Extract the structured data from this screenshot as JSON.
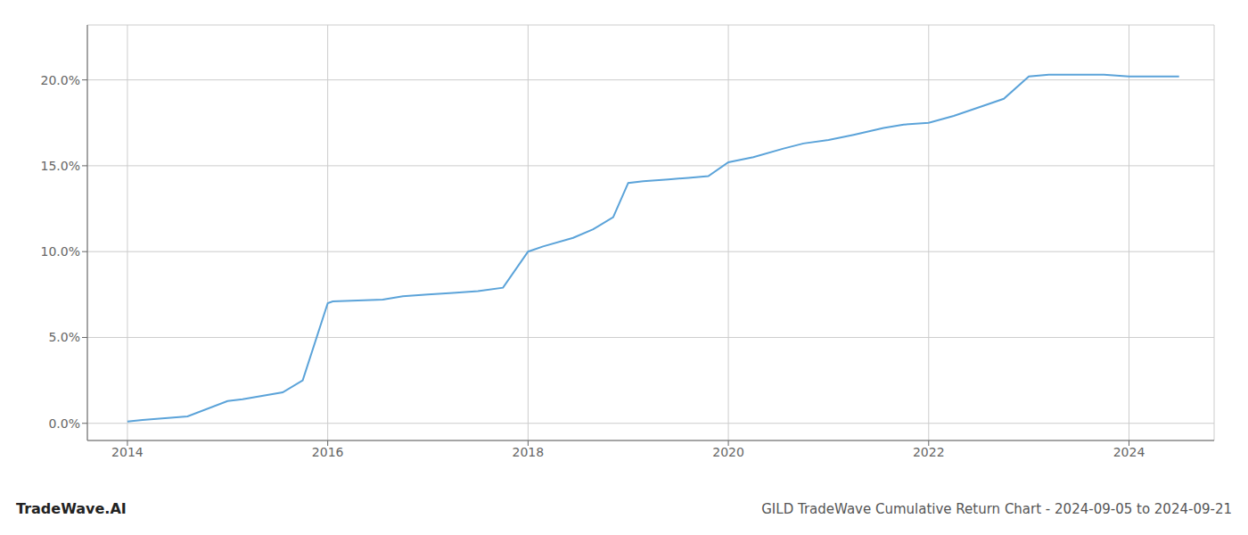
{
  "chart_data": {
    "type": "line",
    "title": "GILD TradeWave Cumulative Return Chart - 2024-09-05 to 2024-09-21",
    "annotations": [
      "TradeWave.AI"
    ],
    "x": [
      2014.0,
      2014.15,
      2014.6,
      2015.0,
      2015.15,
      2015.55,
      2015.75,
      2016.0,
      2016.05,
      2016.55,
      2016.75,
      2017.0,
      2017.25,
      2017.5,
      2017.75,
      2018.0,
      2018.15,
      2018.45,
      2018.65,
      2018.85,
      2019.0,
      2019.15,
      2019.4,
      2019.6,
      2019.8,
      2020.0,
      2020.25,
      2020.55,
      2020.75,
      2021.0,
      2021.25,
      2021.55,
      2021.75,
      2022.0,
      2022.25,
      2022.55,
      2022.75,
      2023.0,
      2023.2,
      2023.5,
      2023.75,
      2024.0,
      2024.5
    ],
    "values": [
      0.001,
      0.002,
      0.004,
      0.013,
      0.014,
      0.018,
      0.025,
      0.07,
      0.071,
      0.072,
      0.074,
      0.075,
      0.076,
      0.077,
      0.079,
      0.1,
      0.103,
      0.108,
      0.113,
      0.12,
      0.14,
      0.141,
      0.142,
      0.143,
      0.144,
      0.152,
      0.155,
      0.16,
      0.163,
      0.165,
      0.168,
      0.172,
      0.174,
      0.175,
      0.179,
      0.185,
      0.189,
      0.202,
      0.203,
      0.203,
      0.203,
      0.202,
      0.202
    ],
    "color": "#5ba3d9",
    "xlim": [
      2013.6,
      2024.85
    ],
    "xticks": [
      2014,
      2016,
      2018,
      2020,
      2022,
      2024
    ],
    "ylim": [
      -0.01,
      0.232
    ],
    "yticks": [
      {
        "value": 0.0,
        "label": "0.0%"
      },
      {
        "value": 0.05,
        "label": "5.0%"
      },
      {
        "value": 0.1,
        "label": "10.0%"
      },
      {
        "value": 0.15,
        "label": "15.0%"
      },
      {
        "value": 0.2,
        "label": "20.0%"
      }
    ],
    "grid": true
  }
}
